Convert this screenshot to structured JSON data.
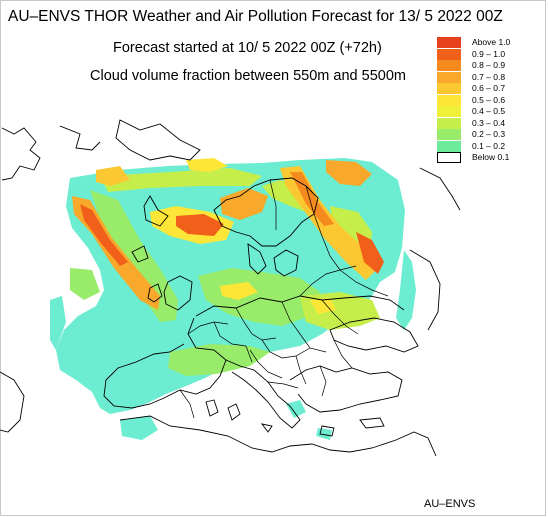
{
  "header": {
    "title": "AU–ENVS THOR Weather and Air Pollution Forecast for 13/ 5 2022  00Z",
    "forecast_start": "Forecast started at 10/ 5 2022  00Z (+72h)",
    "field_name": "Cloud volume fraction between 550m and 5500m"
  },
  "legend": {
    "items": [
      {
        "label": "Above  1.0",
        "color": "#e8401c"
      },
      {
        "label": "0.9 – 1.0",
        "color": "#f0601a"
      },
      {
        "label": "0.8 – 0.9",
        "color": "#f58a1e"
      },
      {
        "label": "0.7 – 0.8",
        "color": "#f8a82a"
      },
      {
        "label": "0.6 – 0.7",
        "color": "#fbc832"
      },
      {
        "label": "0.5 – 0.6",
        "color": "#fde638"
      },
      {
        "label": "0.4 – 0.5",
        "color": "#eef03a"
      },
      {
        "label": "0.3 – 0.4",
        "color": "#c6ee4a"
      },
      {
        "label": "0.2 – 0.3",
        "color": "#98ec6a"
      },
      {
        "label": "0.1 – 0.2",
        "color": "#6cec9a"
      },
      {
        "label": "Below  0.1",
        "color": "#ffffff"
      }
    ]
  },
  "footer": {
    "credit": "AU–ENVS"
  }
}
